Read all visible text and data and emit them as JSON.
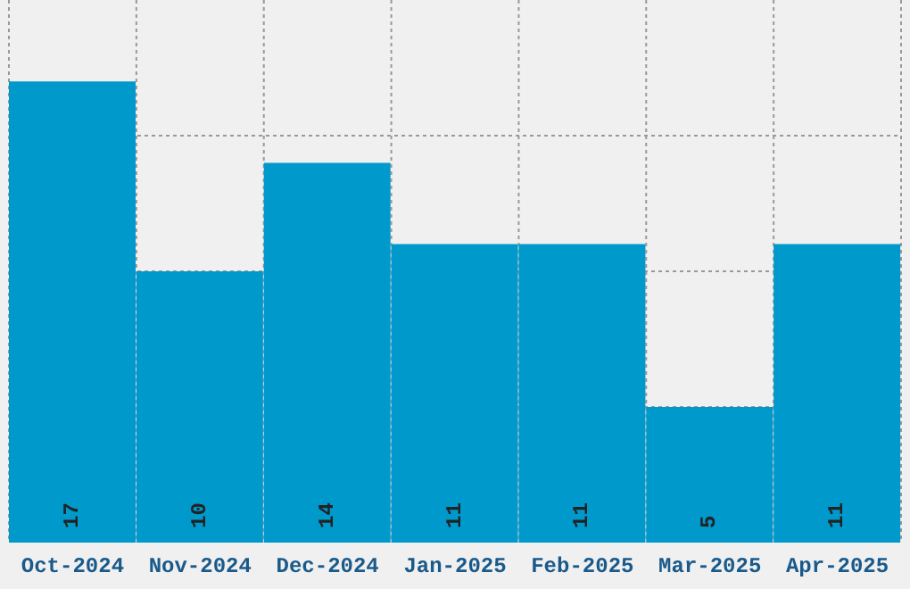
{
  "chart_data": {
    "type": "bar",
    "categories": [
      "Oct-2024",
      "Nov-2024",
      "Dec-2024",
      "Jan-2025",
      "Feb-2025",
      "Mar-2025",
      "Apr-2025"
    ],
    "values": [
      17,
      10,
      14,
      11,
      11,
      5,
      11
    ],
    "color": "#0099cc",
    "data_labels": true,
    "grid": true,
    "tick_labels": "x"
  }
}
